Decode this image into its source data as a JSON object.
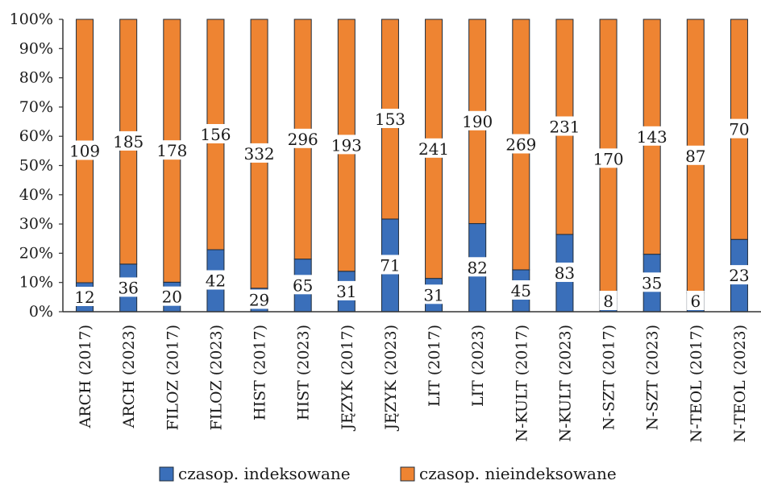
{
  "chart_data": {
    "type": "bar",
    "stacking": "percent",
    "categories": [
      "ARCH (2017)",
      "ARCH (2023)",
      "FILOZ (2017)",
      "FILOZ (2023)",
      "HIST (2017)",
      "HIST (2023)",
      "JĘZYK (2017)",
      "JĘZYK (2023)",
      "LIT (2017)",
      "LIT (2023)",
      "N-KULT (2017)",
      "N-KULT (2023)",
      "N-SZT (2017)",
      "N-SZT (2023)",
      "N-TEOL (2017)",
      "N-TEOL (2023)"
    ],
    "series": [
      {
        "name": "czasop. indeksowane",
        "color": "#3a6fba",
        "values": [
          12,
          36,
          20,
          42,
          29,
          65,
          31,
          71,
          31,
          82,
          45,
          83,
          8,
          35,
          6,
          23
        ]
      },
      {
        "name": "czasop. nieindeksowane",
        "color": "#ee8432",
        "values": [
          109,
          185,
          178,
          156,
          332,
          296,
          193,
          153,
          241,
          190,
          269,
          231,
          170,
          143,
          87,
          70
        ]
      }
    ],
    "yticks": [
      "0%",
      "10%",
      "20%",
      "30%",
      "40%",
      "50%",
      "60%",
      "70%",
      "80%",
      "90%",
      "100%"
    ],
    "ylim": [
      0,
      100
    ],
    "title": "",
    "xlabel": "",
    "ylabel": "",
    "grid": false,
    "legend_position": "bottom"
  }
}
